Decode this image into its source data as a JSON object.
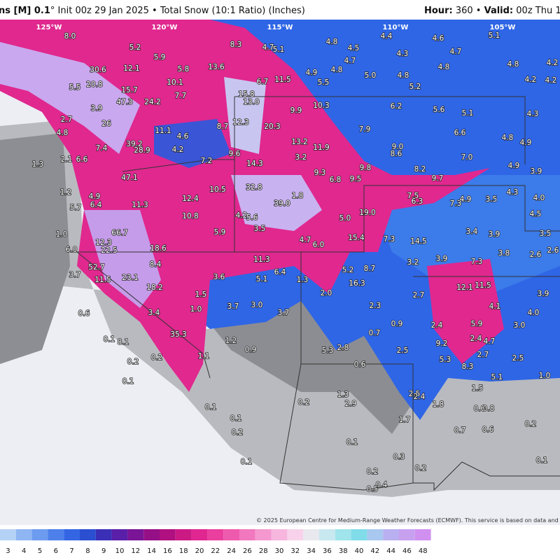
{
  "header": {
    "title_bold": "ns [M] 0.1",
    "title_rest": "° Init 00z 29 Jan 2025 • Total Snow (10:1 Ratio) (Inches)",
    "hour_label": "Hour:",
    "hour_value": "360 •",
    "valid_label": "Valid:",
    "valid_value": "00z Thu 1"
  },
  "longitudes": [
    "125°W",
    "120°W",
    "115°W",
    "110°W",
    "105°W"
  ],
  "map": {
    "labels": [
      "8.0",
      "5.2",
      "5.9",
      "8.3",
      "4.7",
      "5.1",
      "4.8",
      "4.5",
      "4.7",
      "4.8",
      "4.4",
      "4.3",
      "4.6",
      "4.7",
      "4.8",
      "5.1",
      "4.8",
      "4.2",
      "30.6",
      "12.1",
      "5.8",
      "13.6",
      "5.5",
      "20.8",
      "15.7",
      "10.1",
      "6.7",
      "11.5",
      "4.9",
      "5.5",
      "5.0",
      "4.8",
      "5.2",
      "4.2",
      "4.2",
      "15.8",
      "7.7",
      "47.3",
      "24.2",
      "13.0",
      "3.9",
      "9.9",
      "10.3",
      "6.2",
      "5.6",
      "5.1",
      "4.3",
      "2.7",
      "26",
      "8.7",
      "12.3",
      "20.3",
      "7.9",
      "6.6",
      "4.8",
      "11.1",
      "4.6",
      "13.2",
      "11.9",
      "9.0",
      "8.6",
      "4.8",
      "4.9",
      "39.2",
      "7.4",
      "28.9",
      "4.2",
      "9.6",
      "3.2",
      "7.0",
      "1.3",
      "2.1",
      "6.6",
      "14.3",
      "9.8",
      "8.2",
      "4.9",
      "47.1",
      "7.2",
      "9.3",
      "6.8",
      "9.5",
      "9.7",
      "3.9",
      "32.8",
      "10.5",
      "1.8",
      "1.2",
      "4.9",
      "12.4",
      "7.5",
      "4.3",
      "6.4",
      "5.7",
      "11.3",
      "39.0",
      "6.3",
      "7.3",
      "4.9",
      "3.5",
      "4.0",
      "19.0",
      "10.8",
      "4.2",
      "5.6",
      "5.0",
      "4.5",
      "3.5",
      "5.9",
      "3.4",
      "3.9",
      "3.5",
      "66.7",
      "1.0",
      "15.4",
      "4.7",
      "6.0",
      "7.3",
      "14.5",
      "18.6",
      "6.0",
      "12.3",
      "22.5",
      "2.6",
      "3.8",
      "2.6",
      "11.3",
      "7.3",
      "52.7",
      "8.4",
      "3.2",
      "3.9",
      "3.7",
      "23.1",
      "3.6",
      "6.4",
      "5.1",
      "5.2",
      "8.7",
      "1.3",
      "11.5",
      "11.5",
      "12.1",
      "18.2",
      "1.5",
      "2.0",
      "16.3",
      "2.7",
      "3.9",
      "3.7",
      "3.0",
      "3.7",
      "1.0",
      "3.4",
      "2.3",
      "4.1",
      "4.0",
      "0.6",
      "35.3",
      "1.2",
      "0.9",
      "5.9",
      "3.0",
      "0.7",
      "2.4",
      "0.1",
      "8.1",
      "9.2",
      "2.4",
      "4.7",
      "0.9",
      "2.8",
      "5.3",
      "2.5",
      "0.2",
      "0.2",
      "5.3",
      "2.7",
      "2.5",
      "1.1",
      "0.6",
      "8.3",
      "5.1",
      "1.0",
      "0.1",
      "1.3",
      "2.5",
      "2.4",
      "1.8",
      "1.5",
      "0.2",
      "2.9",
      "0.1",
      "0.6",
      "0.8",
      "0.2",
      "0.1",
      "1.7",
      "0.2",
      "0.7",
      "0.6",
      "0.1",
      "0.3",
      "0.1",
      "0.1",
      "0.2",
      "0.2",
      "0.4",
      "0.5"
    ]
  },
  "colorbar": {
    "labels": [
      3,
      4,
      5,
      6,
      7,
      8,
      9,
      10,
      12,
      14,
      16,
      18,
      20,
      22,
      24,
      26,
      28,
      30,
      32,
      34,
      36,
      38,
      40,
      42,
      44,
      46,
      48
    ],
    "colors": [
      "#b4d2f5",
      "#8fb6f2",
      "#6d9bef",
      "#4d80ea",
      "#3466e4",
      "#2a4fd0",
      "#3b2fb8",
      "#5a1fa8",
      "#7a1597",
      "#951087",
      "#b01080",
      "#cc1a85",
      "#e02690",
      "#ea3f9e",
      "#ee5aae",
      "#f178be",
      "#f498cf",
      "#f6b6de",
      "#f7d2ea",
      "#e8e8ee",
      "#c8e8f0",
      "#a0e4ec",
      "#80dce8",
      "#a8c8f0",
      "#b8b0f0",
      "#c8a0f0",
      "#d090f0"
    ]
  },
  "credit": "© 2025 European Centre for Medium-Range Weather Forecasts (ECMWF). This service is based on data and produ"
}
